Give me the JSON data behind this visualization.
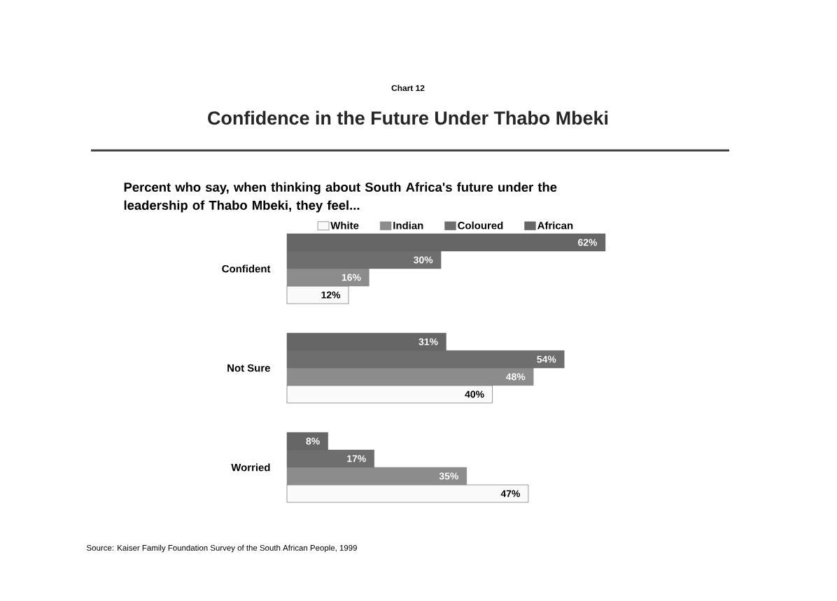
{
  "chart_data": {
    "type": "bar",
    "orientation": "horizontal",
    "subtitle": "Chart 12",
    "title": "Confidence in the Future Under Thabo Mbeki",
    "annotations": [
      "Percent who say, when thinking about South Africa's future under the leadership of Thabo Mbeki, they feel...",
      "Source: Kaiser Family Foundation Survey of the South African People, 1999"
    ],
    "categories": [
      "Confident",
      "Not Sure",
      "Worried"
    ],
    "series": [
      {
        "name": "White",
        "color": "#fafafa",
        "values": [
          12,
          40,
          47
        ],
        "value_labels": [
          "12%",
          "40%",
          "47%"
        ]
      },
      {
        "name": "Indian",
        "color": "#8c8c8c",
        "values": [
          16,
          48,
          35
        ],
        "value_labels": [
          "16%",
          "48%",
          "35%"
        ]
      },
      {
        "name": "Coloured",
        "color": "#6e6e6e",
        "values": [
          30,
          54,
          17
        ],
        "value_labels": [
          "30%",
          "54%",
          "17%"
        ]
      },
      {
        "name": "African",
        "color": "#666666",
        "values": [
          62,
          31,
          8
        ],
        "value_labels": [
          "62%",
          "31%",
          "8%"
        ]
      }
    ],
    "legend": "top"
  }
}
